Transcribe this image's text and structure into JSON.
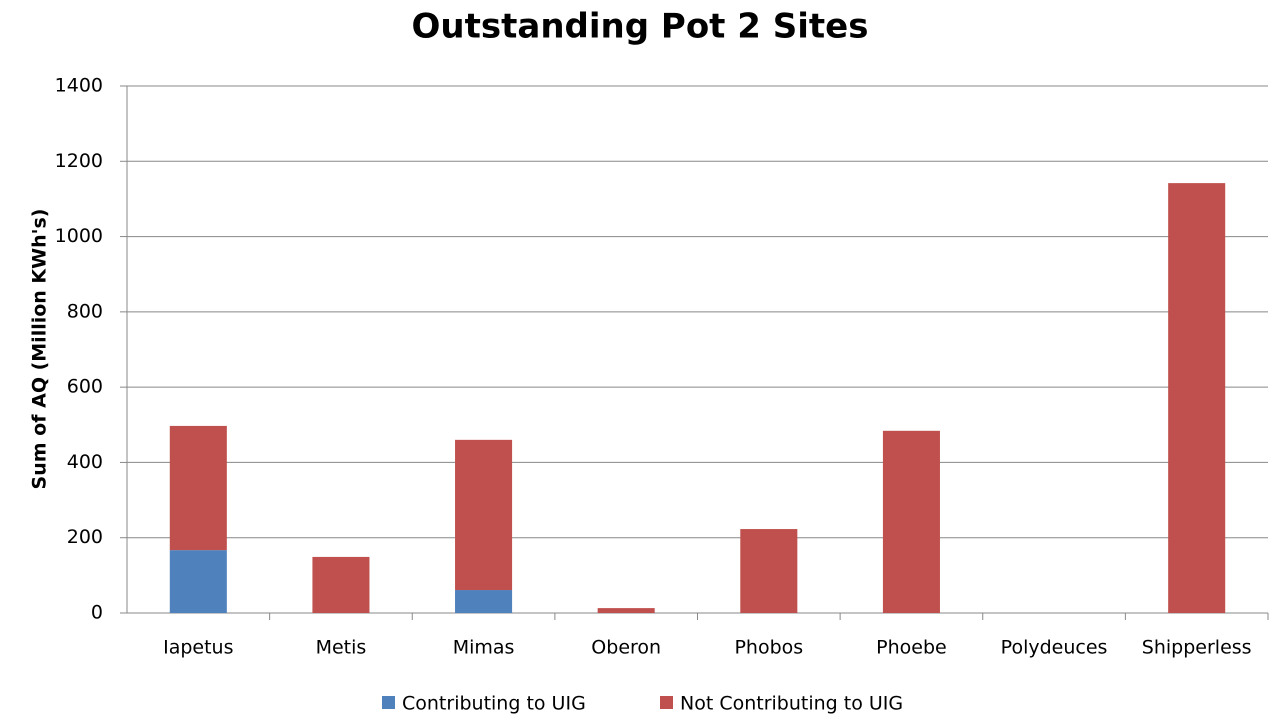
{
  "chart_data": {
    "type": "stacked_bar",
    "title": "Outstanding Pot 2 Sites",
    "y_label": "Sum of AQ (Million KWh's)",
    "categories": [
      "Iapetus",
      "Metis",
      "Mimas",
      "Oberon",
      "Phobos",
      "Phoebe",
      "Polydeuces",
      "Shipperless"
    ],
    "series": [
      {
        "name": "Contributing to UIG",
        "color": "#4f81bd",
        "values": [
          167,
          0,
          61,
          0,
          0,
          0,
          0,
          0
        ]
      },
      {
        "name": "Not Contributing to UIG",
        "color": "#c0504d",
        "values": [
          330,
          149,
          399,
          13,
          223,
          484,
          0,
          1142
        ]
      }
    ],
    "ylim": [
      0,
      1400
    ],
    "yticks": [
      0,
      200,
      400,
      600,
      800,
      1000,
      1200,
      1400
    ],
    "grid": true,
    "legend": "bottom"
  }
}
